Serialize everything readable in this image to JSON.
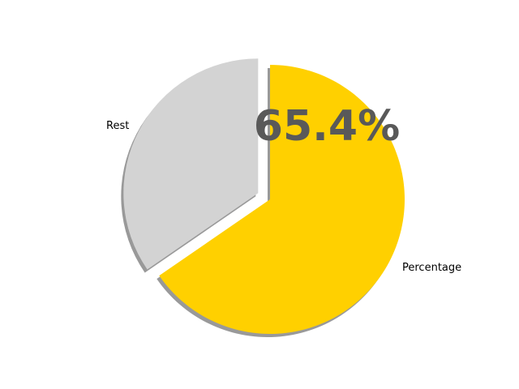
{
  "chart_data": {
    "type": "pie",
    "categories": [
      "Percentage",
      "Rest"
    ],
    "values": [
      65.4,
      34.6
    ],
    "colors": [
      "#FFD000",
      "#D3D3D3"
    ],
    "explode": [
      0,
      0.1
    ],
    "start_angle": 90,
    "counterclock": false,
    "shadow": true,
    "center_label": "65.4%",
    "center_label_color": "#595959"
  }
}
